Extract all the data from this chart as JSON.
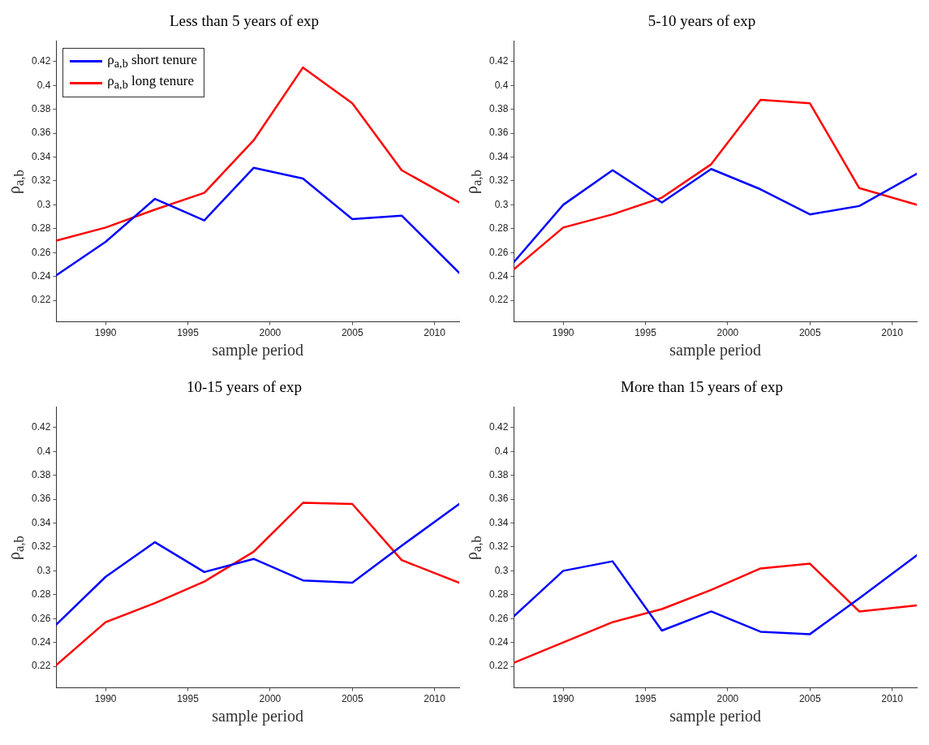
{
  "chart_data": [
    {
      "type": "line",
      "title": "Less than 5 years of exp",
      "xlabel": "sample period",
      "ylabel": "ρ$_{a,b}$",
      "x": [
        1987,
        1990,
        1993,
        1996,
        1999,
        2002,
        2005,
        2008,
        2011.5
      ],
      "xlim": [
        1987,
        2011.5
      ],
      "xticks": [
        1990,
        1995,
        2000,
        2005,
        2010
      ],
      "ylim": [
        0.202,
        0.437
      ],
      "yticks": [
        0.22,
        0.24,
        0.26,
        0.28,
        0.3,
        0.32,
        0.34,
        0.36,
        0.38,
        0.4,
        0.42
      ],
      "legend": "top left",
      "grid": false,
      "marker": "none",
      "line_style": "solid",
      "series": [
        {
          "name": "ρ$_{a,b}$ short tenure",
          "color": "#0000ff",
          "values": [
            0.241,
            0.269,
            0.305,
            0.287,
            0.331,
            0.322,
            0.288,
            0.291,
            0.243
          ]
        },
        {
          "name": "ρ$_{a,b}$ long tenure",
          "color": "#ff0000",
          "values": [
            0.27,
            0.281,
            0.296,
            0.31,
            0.354,
            0.415,
            0.385,
            0.329,
            0.302
          ]
        }
      ]
    },
    {
      "type": "line",
      "title": "5-10 years of exp",
      "xlabel": "sample period",
      "ylabel": "ρ$_{a,b}$",
      "x": [
        1987,
        1990,
        1993,
        1996,
        1999,
        2002,
        2005,
        2008,
        2011.5
      ],
      "xlim": [
        1987,
        2011.5
      ],
      "xticks": [
        1990,
        1995,
        2000,
        2005,
        2010
      ],
      "ylim": [
        0.202,
        0.437
      ],
      "yticks": [
        0.22,
        0.24,
        0.26,
        0.28,
        0.3,
        0.32,
        0.34,
        0.36,
        0.38,
        0.4,
        0.42
      ],
      "grid": false,
      "marker": "none",
      "line_style": "solid",
      "series": [
        {
          "color": "#0000ff",
          "values": [
            0.252,
            0.3,
            0.329,
            0.302,
            0.33,
            0.313,
            0.292,
            0.299,
            0.326
          ]
        },
        {
          "color": "#ff0000",
          "values": [
            0.246,
            0.281,
            0.292,
            0.306,
            0.334,
            0.388,
            0.385,
            0.314,
            0.3
          ]
        }
      ]
    },
    {
      "type": "line",
      "title": "10-15 years of exp",
      "xlabel": "sample period",
      "ylabel": "ρ$_{a,b}$",
      "x": [
        1987,
        1990,
        1993,
        1996,
        1999,
        2002,
        2005,
        2008,
        2011.5
      ],
      "xlim": [
        1987,
        2011.5
      ],
      "xticks": [
        1990,
        1995,
        2000,
        2005,
        2010
      ],
      "ylim": [
        0.202,
        0.437
      ],
      "yticks": [
        0.22,
        0.24,
        0.26,
        0.28,
        0.3,
        0.32,
        0.34,
        0.36,
        0.38,
        0.4,
        0.42
      ],
      "grid": false,
      "marker": "none",
      "line_style": "solid",
      "series": [
        {
          "color": "#0000ff",
          "values": [
            0.255,
            0.295,
            0.324,
            0.299,
            0.31,
            0.292,
            0.29,
            0.321,
            0.356
          ]
        },
        {
          "color": "#ff0000",
          "values": [
            0.221,
            0.257,
            0.273,
            0.291,
            0.316,
            0.357,
            0.356,
            0.309,
            0.29
          ]
        }
      ]
    },
    {
      "type": "line",
      "title": "More than 15 years of exp",
      "xlabel": "sample period",
      "ylabel": "ρ$_{a,b}$",
      "x": [
        1987,
        1990,
        1993,
        1996,
        1999,
        2002,
        2005,
        2008,
        2011.5
      ],
      "xlim": [
        1987,
        2011.5
      ],
      "xticks": [
        1990,
        1995,
        2000,
        2005,
        2010
      ],
      "ylim": [
        0.202,
        0.437
      ],
      "yticks": [
        0.22,
        0.24,
        0.26,
        0.28,
        0.3,
        0.32,
        0.34,
        0.36,
        0.38,
        0.4,
        0.42
      ],
      "grid": false,
      "marker": "none",
      "line_style": "solid",
      "series": [
        {
          "color": "#0000ff",
          "values": [
            0.262,
            0.3,
            0.308,
            0.25,
            0.266,
            0.249,
            0.247,
            0.277,
            0.313
          ]
        },
        {
          "color": "#ff0000",
          "values": [
            0.223,
            0.24,
            0.257,
            0.268,
            0.284,
            0.302,
            0.306,
            0.266,
            0.271
          ]
        }
      ]
    }
  ]
}
